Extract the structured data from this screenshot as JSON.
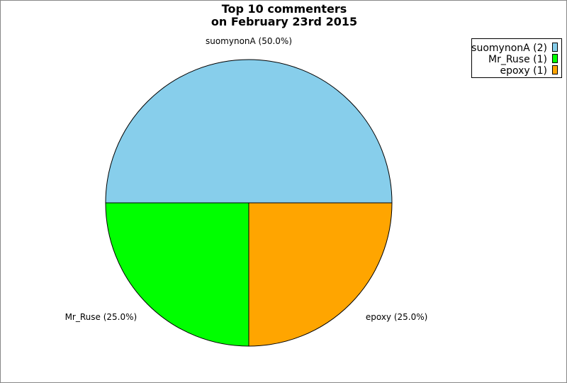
{
  "chart_data": {
    "type": "pie",
    "title": [
      "Top 10 commenters",
      "on February 23rd 2015"
    ],
    "slices": [
      {
        "name": "suomynonA",
        "value": 2,
        "percent": "50.0%",
        "color": "#87CEEB",
        "label": "suomynonA (50.0%)",
        "legend": "suomynonA (2)"
      },
      {
        "name": "Mr_Ruse",
        "value": 1,
        "percent": "25.0%",
        "color": "#00FF00",
        "label": "Mr_Ruse (25.0%)",
        "legend": "Mr_Ruse (1)"
      },
      {
        "name": "epoxy",
        "value": 1,
        "percent": "25.0%",
        "color": "#FFA500",
        "label": "epoxy (25.0%)",
        "legend": "epoxy (1)"
      }
    ],
    "legend_position": "top-right"
  }
}
